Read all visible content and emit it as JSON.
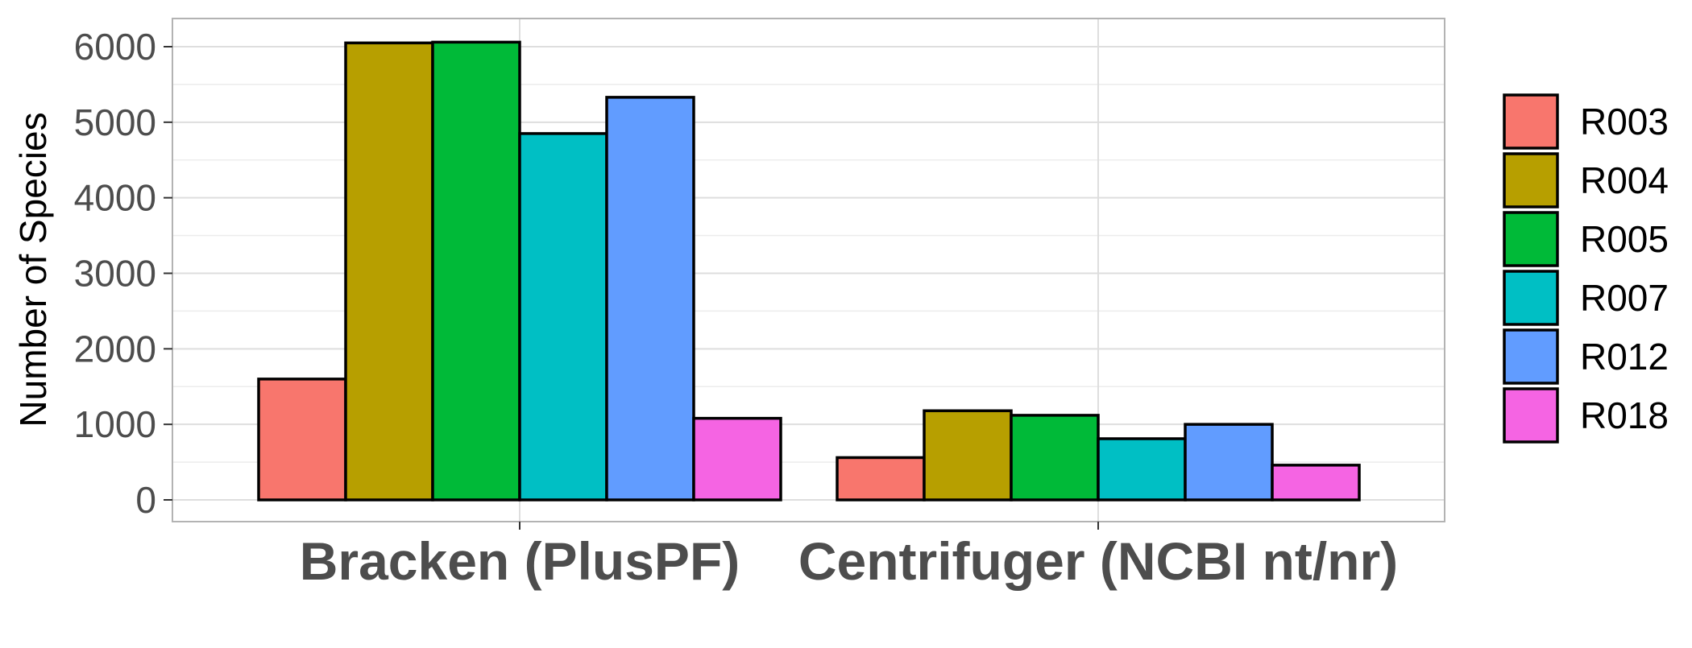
{
  "chart_data": {
    "type": "bar",
    "title": "",
    "xlabel": "",
    "ylabel": "Number of Species",
    "ylim": [
      0,
      6400
    ],
    "yticks": [
      0,
      1000,
      2000,
      3000,
      4000,
      5000,
      6000
    ],
    "categories": [
      "Bracken (PlusPF)",
      "Centrifuger (NCBI nt/nr)"
    ],
    "grid": true,
    "legend_position": "right",
    "series": [
      {
        "name": "R003",
        "color": "#F8766D",
        "values": [
          1600,
          560
        ]
      },
      {
        "name": "R004",
        "color": "#B79F00",
        "values": [
          6050,
          1180
        ]
      },
      {
        "name": "R005",
        "color": "#00BA38",
        "values": [
          6060,
          1120
        ]
      },
      {
        "name": "R007",
        "color": "#00BFC4",
        "values": [
          4850,
          810
        ]
      },
      {
        "name": "R012",
        "color": "#619CFF",
        "values": [
          5330,
          1000
        ]
      },
      {
        "name": "R018",
        "color": "#F564E3",
        "values": [
          1080,
          460
        ]
      }
    ]
  }
}
